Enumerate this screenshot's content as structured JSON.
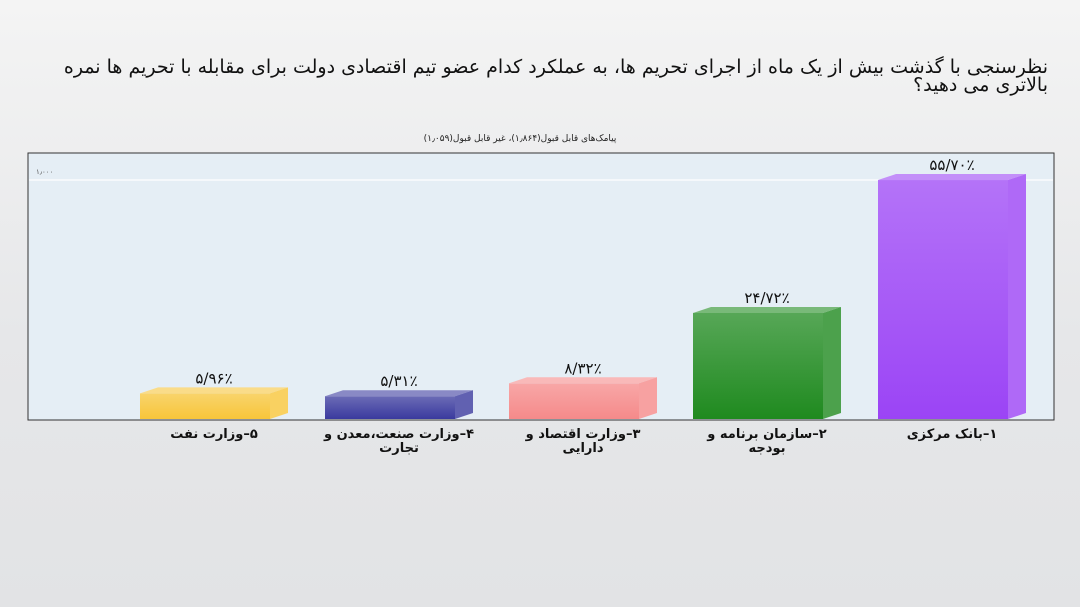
{
  "chart_data": {
    "type": "bar",
    "title": "نظرسنجی با گذشت بیش از یک ماه از اجرای تحریم ها، به عملکرد کدام عضو تیم اقتصادی دولت برای مقابله با تحریم ها نمره بالاتری می دهید؟",
    "subtitle": "پیامک‌های قابل قبول(۱٫۸۶۴)، غیر قابل قبول(۱٫۰۵۹)",
    "categories": [
      "۱–بانک مرکزی",
      "۲–سازمان برنامه و بودجه",
      "۳–وزارت اقتصاد و دارایی",
      "۴–وزارت صنعت،معدن و تجارت",
      "۵–وزارت نفت"
    ],
    "values": [
      55.7,
      24.72,
      8.32,
      5.31,
      5.96
    ],
    "value_labels": [
      "۵۵/۷۰٪",
      "۲۴/۷۲٪",
      "۸/۳۲٪",
      "۵/۳۱٪",
      "۵/۹۶٪"
    ],
    "colors": [
      "#9b44f5",
      "#1f8a1f",
      "#f58a8a",
      "#3a3a9e",
      "#f7c53a"
    ],
    "gridline": {
      "value": 55.7,
      "label": "۱٫۰۰۰"
    },
    "ylim": [
      0,
      62
    ],
    "grid": true,
    "legend": "none",
    "bar_style": "3d"
  }
}
